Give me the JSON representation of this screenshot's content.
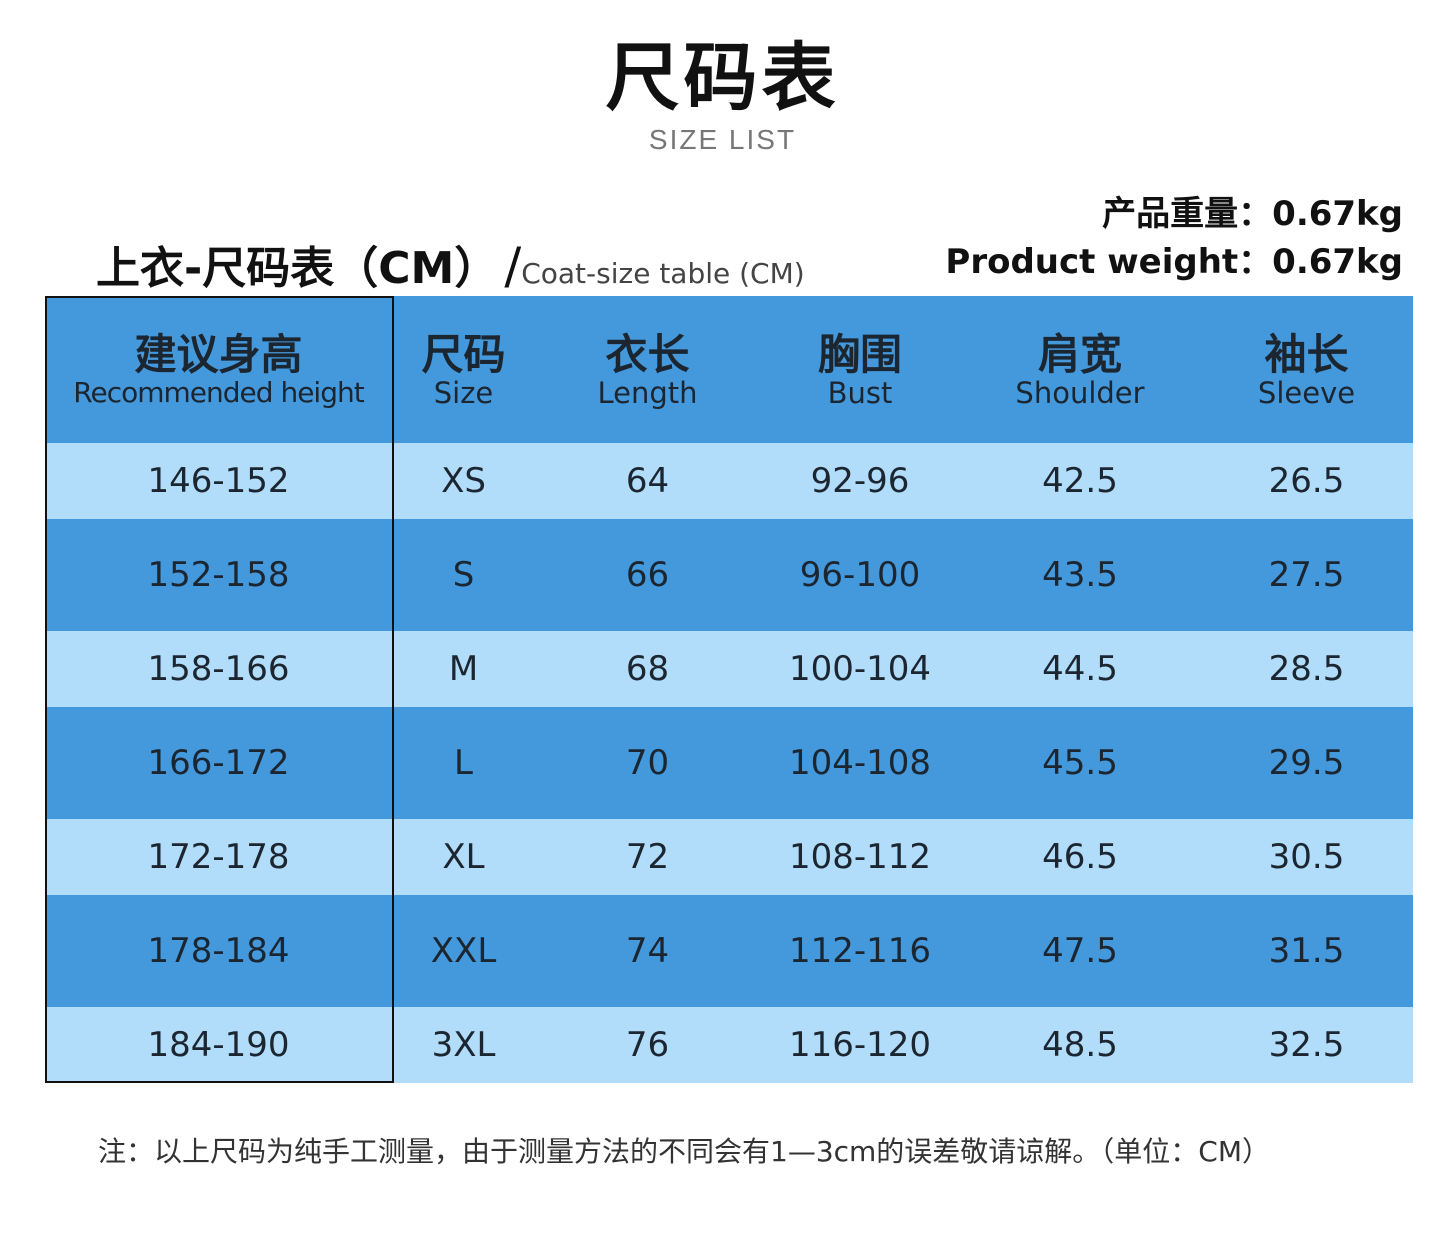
{
  "title": "尺码表",
  "subtitle": "SIZE LIST",
  "table_title": {
    "zh": "上衣-尺码表（CM）",
    "slash": "/",
    "en": "Coat-size table (CM)"
  },
  "weight": {
    "zh": "产品重量：0.67kg",
    "en": "Product weight：0.67kg"
  },
  "columns": [
    {
      "zh": "建议身高",
      "en": "Recommended height"
    },
    {
      "zh": "尺码",
      "en": "Size"
    },
    {
      "zh": "衣长",
      "en": "Length"
    },
    {
      "zh": "胸围",
      "en": "Bust"
    },
    {
      "zh": "肩宽",
      "en": "Shoulder"
    },
    {
      "zh": "袖长",
      "en": "Sleeve"
    }
  ],
  "rows": [
    [
      "146-152",
      "XS",
      "64",
      "92-96",
      "42.5",
      "26.5"
    ],
    [
      "152-158",
      "S",
      "66",
      "96-100",
      "43.5",
      "27.5"
    ],
    [
      "158-166",
      "M",
      "68",
      "100-104",
      "44.5",
      "28.5"
    ],
    [
      "166-172",
      "L",
      "70",
      "104-108",
      "45.5",
      "29.5"
    ],
    [
      "172-178",
      "XL",
      "72",
      "108-112",
      "46.5",
      "30.5"
    ],
    [
      "178-184",
      "XXL",
      "74",
      "112-116",
      "47.5",
      "31.5"
    ],
    [
      "184-190",
      "3XL",
      "76",
      "116-120",
      "48.5",
      "32.5"
    ]
  ],
  "note": "注：以上尺码为纯手工测量，由于测量方法的不同会有1—3cm的误差敬请谅解。（单位：CM）",
  "colors": {
    "dark_row": "#4499dd",
    "light_row": "#b1dcfa"
  }
}
